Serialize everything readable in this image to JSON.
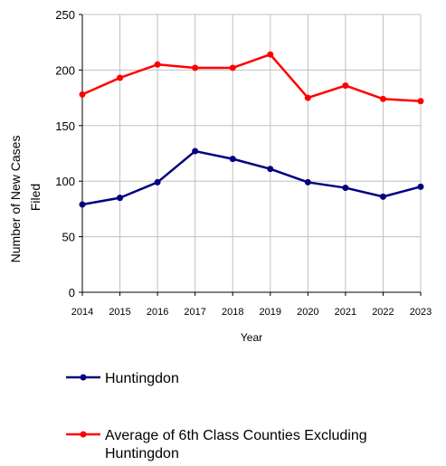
{
  "chart_data": {
    "type": "line",
    "title": "",
    "xlabel": "Year",
    "ylabel_lines": [
      "Number of New Cases",
      "Filed"
    ],
    "x": [
      "2014",
      "2015",
      "2016",
      "2017",
      "2018",
      "2019",
      "2020",
      "2021",
      "2022",
      "2023"
    ],
    "ylim": [
      0,
      250
    ],
    "yticks": [
      0,
      50,
      100,
      150,
      200,
      250
    ],
    "grid": true,
    "legend_position": "bottom",
    "series": [
      {
        "name": "Huntingdon",
        "color": "#000080",
        "values": [
          79,
          85,
          99,
          127,
          120,
          111,
          99,
          94,
          86,
          95
        ]
      },
      {
        "name_lines": [
          "Average of 6th Class Counties Excluding",
          "Huntingdon"
        ],
        "color": "#ff0000",
        "values": [
          178,
          193,
          205,
          202,
          202,
          214,
          175,
          186,
          174,
          172
        ]
      }
    ]
  }
}
